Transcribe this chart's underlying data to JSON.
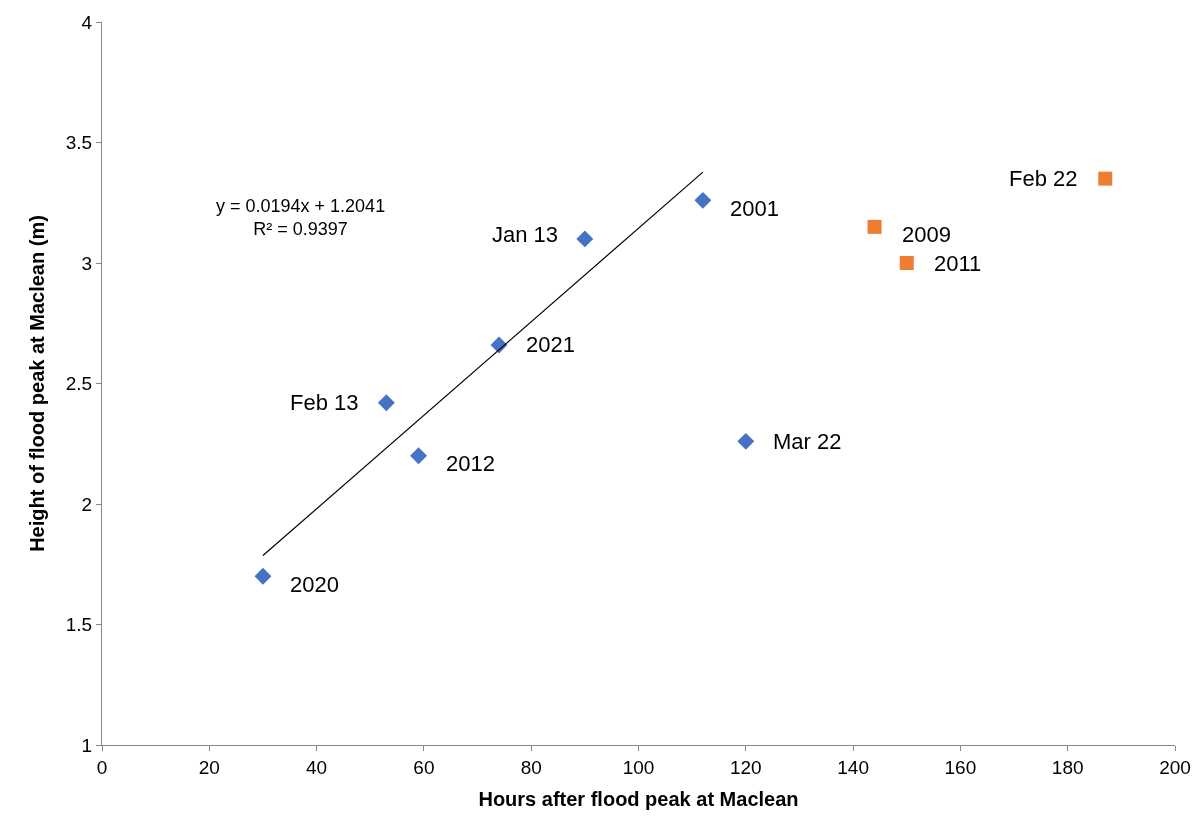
{
  "chart_data": {
    "type": "scatter",
    "xlabel": "Hours after flood peak at Maclean",
    "ylabel": "Height of flood peak at Maclean (m)",
    "xlim": [
      0,
      200
    ],
    "xticks": [
      0,
      20,
      40,
      60,
      80,
      100,
      120,
      140,
      160,
      180,
      200
    ],
    "ylim": [
      1,
      4
    ],
    "yticks": [
      1,
      1.5,
      2,
      2.5,
      3,
      3.5,
      4
    ],
    "series": [
      {
        "color": "#4472c4",
        "marker": "diamond",
        "x": [
          30,
          53,
          59,
          74,
          90,
          112,
          120
        ],
        "values": [
          1.7,
          2.42,
          2.2,
          2.66,
          3.1,
          3.26,
          2.26
        ]
      },
      {
        "color": "#ed7d31",
        "marker": "square",
        "x": [
          144,
          150,
          187
        ],
        "values": [
          3.15,
          3.0,
          3.35
        ]
      },
      {
        "type": "line",
        "color": "#000000",
        "marker": "none",
        "x": [
          30,
          112
        ],
        "values": [
          1.786,
          3.377
        ]
      }
    ],
    "annotations": [
      {
        "text": "2020",
        "x": 30,
        "y": 1.7
      },
      {
        "text": "Feb 13",
        "x": 53,
        "y": 2.42
      },
      {
        "text": "2012",
        "x": 59,
        "y": 2.2
      },
      {
        "text": "2021",
        "x": 74,
        "y": 2.66
      },
      {
        "text": "Jan 13",
        "x": 90,
        "y": 3.1
      },
      {
        "text": "2001",
        "x": 112,
        "y": 3.26
      },
      {
        "text": "Mar 22",
        "x": 120,
        "y": 2.26
      },
      {
        "text": "2009",
        "x": 144,
        "y": 3.15
      },
      {
        "text": "2011",
        "x": 150,
        "y": 3.0
      },
      {
        "text": "Feb 22",
        "x": 187,
        "y": 3.35
      },
      "y = 0.0194x + 1.2041\nR² = 0.9397"
    ]
  }
}
